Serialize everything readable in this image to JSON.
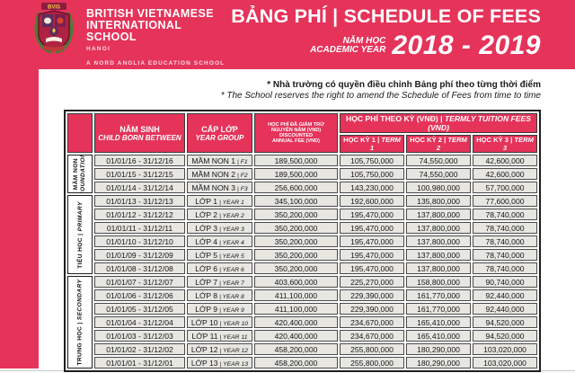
{
  "colors": {
    "brand_red": "#E5335A",
    "cell_bg": "#E7E6E1",
    "cell_border": "#4a4a4a",
    "divider_gray": "#c9c9c9"
  },
  "brand": {
    "crest_initials": "BVIS",
    "school_name_line1": "BRITISH VIETNAMESE",
    "school_name_line2": "INTERNATIONAL",
    "school_name_line3": "SCHOOL",
    "city": "HANOI",
    "tagline": "A NORD ANGLIA EDUCATION SCHOOL"
  },
  "title": {
    "main": "BẢNG PHÍ | SCHEDULE OF FEES",
    "year_label_vi": "NĂM HỌC",
    "year_label_en": "ACADEMIC YEAR",
    "years": "2018 - 2019"
  },
  "notes": {
    "vi": "* Nhà trường có quyền điều chỉnh Bảng phí theo từng thời điểm",
    "en": "* The School reserves the right to amend the Schedule of Fees from time to time"
  },
  "table": {
    "headers": {
      "sep": "|",
      "born_vi": "NĂM SINH",
      "born_en": "CHILD BORN BETWEEN",
      "year_group_vi": "CẤP LỚP",
      "year_group_en": "YEAR GROUP",
      "annual_line1": "HỌC PHÍ ĐÃ GIẢM TRỪ",
      "annual_line2": "NGUYÊN NĂM (VND)",
      "annual_line3": "DISCOUNTED",
      "annual_line4": "ANNUAL FEE (VND)",
      "termly_vi": "HỌC PHÍ THEO KỲ (VNĐ)",
      "termly_en": "TERMLY TUITION FEES (VND)",
      "terms": [
        {
          "vi": "HỌC KỲ 1",
          "en": "TERM 1"
        },
        {
          "vi": "HỌC KỲ 2",
          "en": "TERM 2"
        },
        {
          "vi": "HỌC KỲ 3",
          "en": "TERM 3"
        }
      ]
    },
    "sections": [
      {
        "label_vi": "MẦM NON",
        "label_en": "FOUNDATION",
        "two_line": true,
        "rows": [
          {
            "born": "01/01/16 - 31/12/16",
            "group_vi": "MẦM NON 1",
            "group_en": "F1",
            "annual": "189,500,000",
            "term1": "105,750,000",
            "term2": "74,550,000",
            "term3": "42,600,000"
          },
          {
            "born": "01/01/15 - 31/12/15",
            "group_vi": "MẦM NON 2",
            "group_en": "F2",
            "annual": "189,500,000",
            "term1": "105,750,000",
            "term2": "74,550,000",
            "term3": "42,600,000"
          },
          {
            "born": "01/01/14 - 31/12/14",
            "group_vi": "MẦM NON 3",
            "group_en": "F3",
            "annual": "256,600,000",
            "term1": "143,230,000",
            "term2": "100,980,000",
            "term3": "57,700,000"
          }
        ]
      },
      {
        "label_vi": "TIỂU HỌC",
        "label_en": "PRIMARY",
        "two_line": false,
        "rows": [
          {
            "born": "01/01/13 - 31/12/13",
            "group_vi": "LỚP 1",
            "group_en": "YEAR 1",
            "annual": "345,100,000",
            "term1": "192,600,000",
            "term2": "135,800,000",
            "term3": "77,600,000"
          },
          {
            "born": "01/01/12 - 31/12/12",
            "group_vi": "LỚP 2",
            "group_en": "YEAR 2",
            "annual": "350,200,000",
            "term1": "195,470,000",
            "term2": "137,800,000",
            "term3": "78,740,000"
          },
          {
            "born": "01/01/11 - 31/12/11",
            "group_vi": "LỚP 3",
            "group_en": "YEAR 3",
            "annual": "350,200,000",
            "term1": "195,470,000",
            "term2": "137,800,000",
            "term3": "78,740,000"
          },
          {
            "born": "01/01/10 - 31/12/10",
            "group_vi": "LỚP 4",
            "group_en": "YEAR 4",
            "annual": "350,200,000",
            "term1": "195,470,000",
            "term2": "137,800,000",
            "term3": "78,740,000"
          },
          {
            "born": "01/01/09 - 31/12/09",
            "group_vi": "LỚP 5",
            "group_en": "YEAR 5",
            "annual": "350,200,000",
            "term1": "195,470,000",
            "term2": "137,800,000",
            "term3": "78,740,000"
          },
          {
            "born": "01/01/08 - 31/12/08",
            "group_vi": "LỚP 6",
            "group_en": "YEAR 6",
            "annual": "350,200,000",
            "term1": "195,470,000",
            "term2": "137,800,000",
            "term3": "78,740,000"
          }
        ]
      },
      {
        "label_vi": "TRUNG HỌC",
        "label_en": "SECONDARY",
        "two_line": false,
        "rows": [
          {
            "born": "01/01/07 - 31/12/07",
            "group_vi": "LỚP 7",
            "group_en": "YEAR 7",
            "annual": "403,600,000",
            "term1": "225,270,000",
            "term2": "158,800,000",
            "term3": "90,740,000"
          },
          {
            "born": "01/01/06 - 31/12/06",
            "group_vi": "LỚP 8",
            "group_en": "YEAR 8",
            "annual": "411,100,000",
            "term1": "229,390,000",
            "term2": "161,770,000",
            "term3": "92,440,000"
          },
          {
            "born": "01/01/05 - 31/12/05",
            "group_vi": "LỚP 9",
            "group_en": "YEAR 9",
            "annual": "411,100,000",
            "term1": "229,390,000",
            "term2": "161,770,000",
            "term3": "92,440,000"
          },
          {
            "born": "01/01/04 - 31/12/04",
            "group_vi": "LỚP 10",
            "group_en": "YEAR 10",
            "annual": "420,400,000",
            "term1": "234,670,000",
            "term2": "165,410,000",
            "term3": "94,520,000"
          },
          {
            "born": "01/01/03 - 31/12/03",
            "group_vi": "LỚP 11",
            "group_en": "YEAR 11",
            "annual": "420,400,000",
            "term1": "234,670,000",
            "term2": "165,410,000",
            "term3": "94,520,000"
          },
          {
            "born": "01/01/02 - 31/12/02",
            "group_vi": "LỚP 12",
            "group_en": "YEAR 12",
            "annual": "458,200,000",
            "term1": "255,800,000",
            "term2": "180,290,000",
            "term3": "103,020,000"
          },
          {
            "born": "01/01/01 - 31/12/01",
            "group_vi": "LỚP 13",
            "group_en": "YEAR 13",
            "annual": "458,200,000",
            "term1": "255,800,000",
            "term2": "180,290,000",
            "term3": "103,020,000"
          }
        ]
      }
    ]
  }
}
